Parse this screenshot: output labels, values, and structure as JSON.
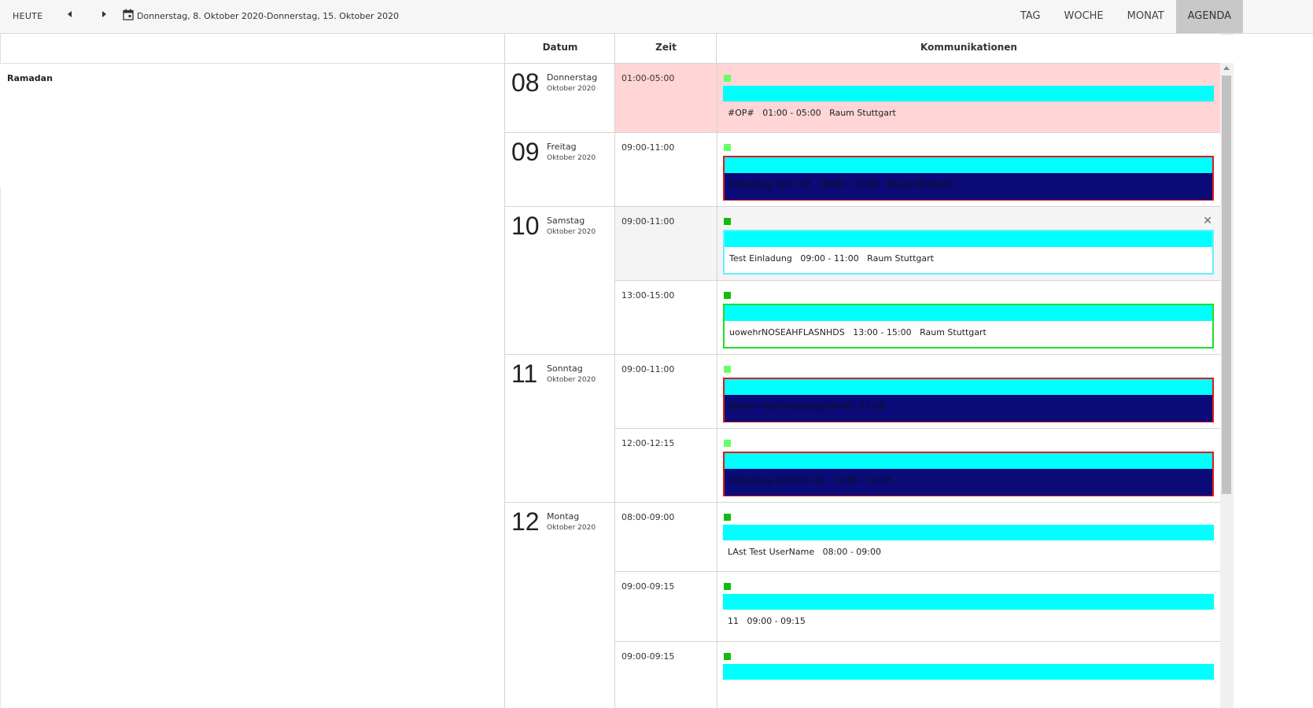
{
  "toolbar": {
    "today_label": "HEUTE",
    "range_text": "Donnerstag, 8. Oktober 2020-Donnerstag, 15. Oktober 2020",
    "views": [
      "TAG",
      "WOCHE",
      "MONAT",
      "AGENDA"
    ],
    "active_view": "AGENDA"
  },
  "left": {
    "item": "Ramadan"
  },
  "headers": {
    "date": "Datum",
    "time": "Zeit",
    "communications": "Kommunikationen"
  },
  "days": [
    {
      "num": "08",
      "weekday": "Donnerstag",
      "month": "Oktober 2020"
    },
    {
      "num": "09",
      "weekday": "Freitag",
      "month": "Oktober 2020"
    },
    {
      "num": "10",
      "weekday": "Samstag",
      "month": "Oktober 2020"
    },
    {
      "num": "11",
      "weekday": "Sonntag",
      "month": "Oktober 2020"
    },
    {
      "num": "12",
      "weekday": "Montag",
      "month": "Oktober 2020"
    }
  ],
  "slots": [
    {
      "time": "01:00-05:00",
      "event": "#OP#   01:00 - 05:00   Raum Stuttgart"
    },
    {
      "time": "09:00-11:00",
      "event": "Einladung Test 123   09:00 - 11:00   Raum Stuttgart"
    },
    {
      "time": "09:00-11:00",
      "event": "Test Einladung   09:00 - 11:00   Raum Stuttgart"
    },
    {
      "time": "13:00-15:00",
      "event": "uowehrNOSEAHFLASNHDS   13:00 - 15:00   Raum Stuttgart"
    },
    {
      "time": "09:00-11:00",
      "event": "Termin Test Einladung 09:00 - 11:00"
    },
    {
      "time": "12:00-12:15",
      "event": "Einladung 2020-10-11   12:00 - 12:15"
    },
    {
      "time": "08:00-09:00",
      "event": "LAst Test UserName   08:00 - 09:00"
    },
    {
      "time": "09:00-09:15",
      "event": "11   09:00 - 09:15"
    },
    {
      "time": "09:00-09:15",
      "event": ""
    }
  ],
  "colors": {
    "cyan": "#00ffff",
    "navy": "#0a0a78",
    "red_border": "#e41818",
    "green_border": "#22dd22",
    "highlight_row": "#ffd5d5",
    "selected_row": "#f4f4f4"
  }
}
